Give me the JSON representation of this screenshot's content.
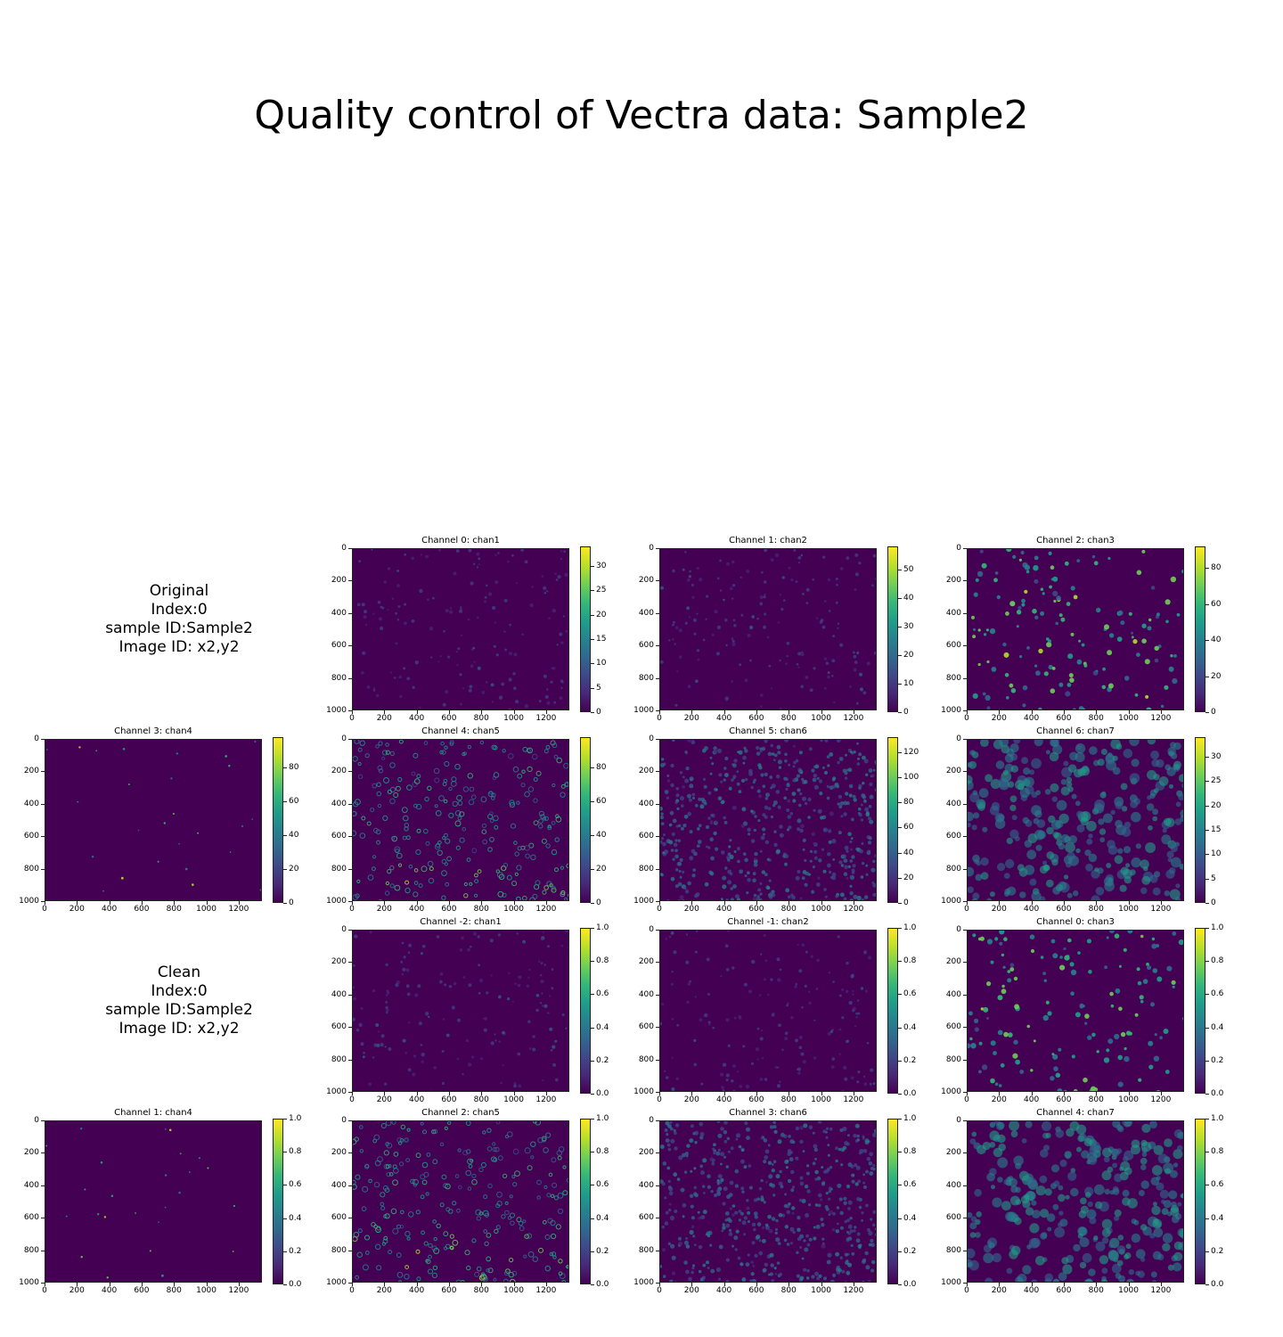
{
  "title": "Quality control of Vectra data: Sample2",
  "info_blocks": [
    {
      "lines": [
        "Original",
        "Index:0",
        "sample ID:Sample2",
        "Image ID: x2,y2"
      ]
    },
    {
      "lines": [
        "Clean",
        "Index:0",
        "sample ID:Sample2",
        "Image ID: x2,y2"
      ]
    }
  ],
  "colormap": "viridis",
  "chart_data": [
    {
      "type": "heatmap",
      "title": "Channel 0: chan1",
      "x_ticks": [
        0,
        200,
        400,
        600,
        800,
        1000,
        1200
      ],
      "y_ticks": [
        0,
        200,
        400,
        600,
        800,
        1000
      ],
      "ylim": [
        1000,
        0
      ],
      "colorbar_ticks": [
        0,
        5,
        10,
        15,
        20,
        25,
        30
      ],
      "colorbar_range": [
        0,
        34
      ],
      "pattern": "faint"
    },
    {
      "type": "heatmap",
      "title": "Channel 1: chan2",
      "x_ticks": [
        0,
        200,
        400,
        600,
        800,
        1000,
        1200
      ],
      "y_ticks": [
        0,
        200,
        400,
        600,
        800,
        1000
      ],
      "ylim": [
        1000,
        0
      ],
      "colorbar_ticks": [
        0,
        10,
        20,
        30,
        40,
        50
      ],
      "colorbar_range": [
        0,
        58
      ],
      "pattern": "faint"
    },
    {
      "type": "heatmap",
      "title": "Channel 2: chan3",
      "x_ticks": [
        0,
        200,
        400,
        600,
        800,
        1000,
        1200
      ],
      "y_ticks": [
        0,
        200,
        400,
        600,
        800,
        1000
      ],
      "ylim": [
        1000,
        0
      ],
      "colorbar_ticks": [
        0,
        20,
        40,
        60,
        80
      ],
      "colorbar_range": [
        0,
        92
      ],
      "pattern": "nuclei"
    },
    {
      "type": "heatmap",
      "title": "Channel 3: chan4",
      "x_ticks": [
        0,
        200,
        400,
        600,
        800,
        1000,
        1200
      ],
      "y_ticks": [
        0,
        200,
        400,
        600,
        800,
        1000
      ],
      "ylim": [
        1000,
        0
      ],
      "colorbar_ticks": [
        0,
        20,
        40,
        60,
        80
      ],
      "colorbar_range": [
        0,
        98
      ],
      "pattern": "sparse"
    },
    {
      "type": "heatmap",
      "title": "Channel 4: chan5",
      "x_ticks": [
        0,
        200,
        400,
        600,
        800,
        1000,
        1200
      ],
      "y_ticks": [
        0,
        200,
        400,
        600,
        800,
        1000
      ],
      "ylim": [
        1000,
        0
      ],
      "colorbar_ticks": [
        0,
        20,
        40,
        60,
        80
      ],
      "colorbar_range": [
        0,
        98
      ],
      "pattern": "rings"
    },
    {
      "type": "heatmap",
      "title": "Channel 5: chan6",
      "x_ticks": [
        0,
        200,
        400,
        600,
        800,
        1000,
        1200
      ],
      "y_ticks": [
        0,
        200,
        400,
        600,
        800,
        1000
      ],
      "ylim": [
        1000,
        0
      ],
      "colorbar_ticks": [
        0,
        20,
        40,
        60,
        80,
        100,
        120
      ],
      "colorbar_range": [
        0,
        132
      ],
      "pattern": "dense"
    },
    {
      "type": "heatmap",
      "title": "Channel 6: chan7",
      "x_ticks": [
        0,
        200,
        400,
        600,
        800,
        1000,
        1200
      ],
      "y_ticks": [
        0,
        200,
        400,
        600,
        800,
        1000
      ],
      "ylim": [
        1000,
        0
      ],
      "colorbar_ticks": [
        0,
        5,
        10,
        15,
        20,
        25,
        30
      ],
      "colorbar_range": [
        0,
        34
      ],
      "pattern": "tissue"
    },
    {
      "type": "heatmap",
      "title": "Channel -2: chan1",
      "x_ticks": [
        0,
        200,
        400,
        600,
        800,
        1000,
        1200
      ],
      "y_ticks": [
        0,
        200,
        400,
        600,
        800,
        1000
      ],
      "ylim": [
        1000,
        0
      ],
      "colorbar_ticks": [
        0.0,
        0.2,
        0.4,
        0.6,
        0.8,
        1.0
      ],
      "colorbar_range": [
        0,
        1
      ],
      "pattern": "faint"
    },
    {
      "type": "heatmap",
      "title": "Channel -1: chan2",
      "x_ticks": [
        0,
        200,
        400,
        600,
        800,
        1000,
        1200
      ],
      "y_ticks": [
        0,
        200,
        400,
        600,
        800,
        1000
      ],
      "ylim": [
        1000,
        0
      ],
      "colorbar_ticks": [
        0.0,
        0.2,
        0.4,
        0.6,
        0.8,
        1.0
      ],
      "colorbar_range": [
        0,
        1
      ],
      "pattern": "faint"
    },
    {
      "type": "heatmap",
      "title": "Channel 0: chan3",
      "x_ticks": [
        0,
        200,
        400,
        600,
        800,
        1000,
        1200
      ],
      "y_ticks": [
        0,
        200,
        400,
        600,
        800,
        1000
      ],
      "ylim": [
        1000,
        0
      ],
      "colorbar_ticks": [
        0.0,
        0.2,
        0.4,
        0.6,
        0.8,
        1.0
      ],
      "colorbar_range": [
        0,
        1
      ],
      "pattern": "nuclei"
    },
    {
      "type": "heatmap",
      "title": "Channel 1: chan4",
      "x_ticks": [
        0,
        200,
        400,
        600,
        800,
        1000,
        1200
      ],
      "y_ticks": [
        0,
        200,
        400,
        600,
        800,
        1000
      ],
      "ylim": [
        1000,
        0
      ],
      "colorbar_ticks": [
        0.0,
        0.2,
        0.4,
        0.6,
        0.8,
        1.0
      ],
      "colorbar_range": [
        0,
        1
      ],
      "pattern": "sparse"
    },
    {
      "type": "heatmap",
      "title": "Channel 2: chan5",
      "x_ticks": [
        0,
        200,
        400,
        600,
        800,
        1000,
        1200
      ],
      "y_ticks": [
        0,
        200,
        400,
        600,
        800,
        1000
      ],
      "ylim": [
        1000,
        0
      ],
      "colorbar_ticks": [
        0.0,
        0.2,
        0.4,
        0.6,
        0.8,
        1.0
      ],
      "colorbar_range": [
        0,
        1
      ],
      "pattern": "rings"
    },
    {
      "type": "heatmap",
      "title": "Channel 3: chan6",
      "x_ticks": [
        0,
        200,
        400,
        600,
        800,
        1000,
        1200
      ],
      "y_ticks": [
        0,
        200,
        400,
        600,
        800,
        1000
      ],
      "ylim": [
        1000,
        0
      ],
      "colorbar_ticks": [
        0.0,
        0.2,
        0.4,
        0.6,
        0.8,
        1.0
      ],
      "colorbar_range": [
        0,
        1
      ],
      "pattern": "dense"
    },
    {
      "type": "heatmap",
      "title": "Channel 4: chan7",
      "x_ticks": [
        0,
        200,
        400,
        600,
        800,
        1000,
        1200
      ],
      "y_ticks": [
        0,
        200,
        400,
        600,
        800,
        1000
      ],
      "ylim": [
        1000,
        0
      ],
      "colorbar_ticks": [
        0.0,
        0.2,
        0.4,
        0.6,
        0.8,
        1.0
      ],
      "colorbar_range": [
        0,
        1
      ],
      "pattern": "tissue"
    }
  ]
}
